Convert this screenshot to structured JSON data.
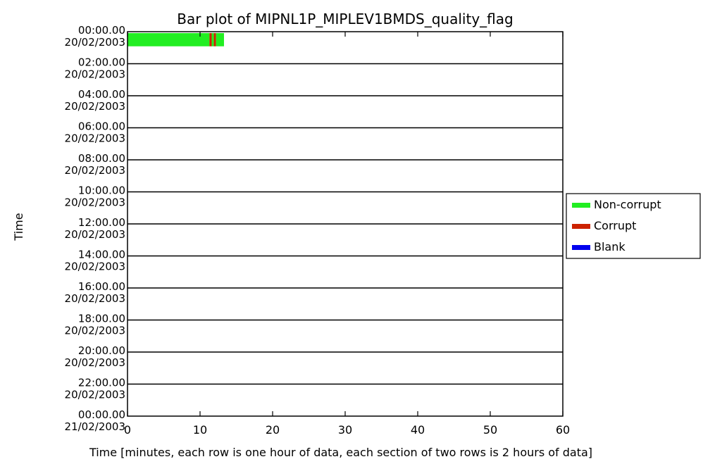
{
  "chart_data": {
    "type": "bar",
    "title": "Bar plot of MIPNL1P_MIPLEV1BMDS_quality_flag",
    "xlabel": "Time [minutes, each row is one hour of data, each section of two rows is 2 hours of data]",
    "ylabel": "Time",
    "xlim": [
      0,
      60
    ],
    "x_ticks": [
      "0",
      "10",
      "20",
      "30",
      "40",
      "50",
      "60"
    ],
    "y_ticks": [
      {
        "time": "00:00.00",
        "date": "20/02/2003"
      },
      {
        "time": "02:00.00",
        "date": "20/02/2003"
      },
      {
        "time": "04:00.00",
        "date": "20/02/2003"
      },
      {
        "time": "06:00.00",
        "date": "20/02/2003"
      },
      {
        "time": "08:00.00",
        "date": "20/02/2003"
      },
      {
        "time": "10:00.00",
        "date": "20/02/2003"
      },
      {
        "time": "12:00.00",
        "date": "20/02/2003"
      },
      {
        "time": "14:00.00",
        "date": "20/02/2003"
      },
      {
        "time": "16:00.00",
        "date": "20/02/2003"
      },
      {
        "time": "18:00.00",
        "date": "20/02/2003"
      },
      {
        "time": "20:00.00",
        "date": "20/02/2003"
      },
      {
        "time": "22:00.00",
        "date": "20/02/2003"
      },
      {
        "time": "00:00.00",
        "date": "21/02/2003"
      }
    ],
    "grid": false,
    "legend_position": "right",
    "legend": [
      {
        "label": "Non-corrupt",
        "color": "#22ee22"
      },
      {
        "label": "Corrupt",
        "color": "#cc2200"
      },
      {
        "label": "Blank",
        "color": "#0000ee"
      }
    ],
    "bars": [
      {
        "hour": 0,
        "start_min": 0.0,
        "end_min": 11.3,
        "status": "Non-corrupt"
      },
      {
        "hour": 0,
        "start_min": 11.3,
        "end_min": 11.6,
        "status": "Corrupt"
      },
      {
        "hour": 0,
        "start_min": 11.6,
        "end_min": 11.9,
        "status": "Non-corrupt"
      },
      {
        "hour": 0,
        "start_min": 11.9,
        "end_min": 12.2,
        "status": "Corrupt"
      },
      {
        "hour": 0,
        "start_min": 12.2,
        "end_min": 13.3,
        "status": "Non-corrupt"
      }
    ]
  }
}
